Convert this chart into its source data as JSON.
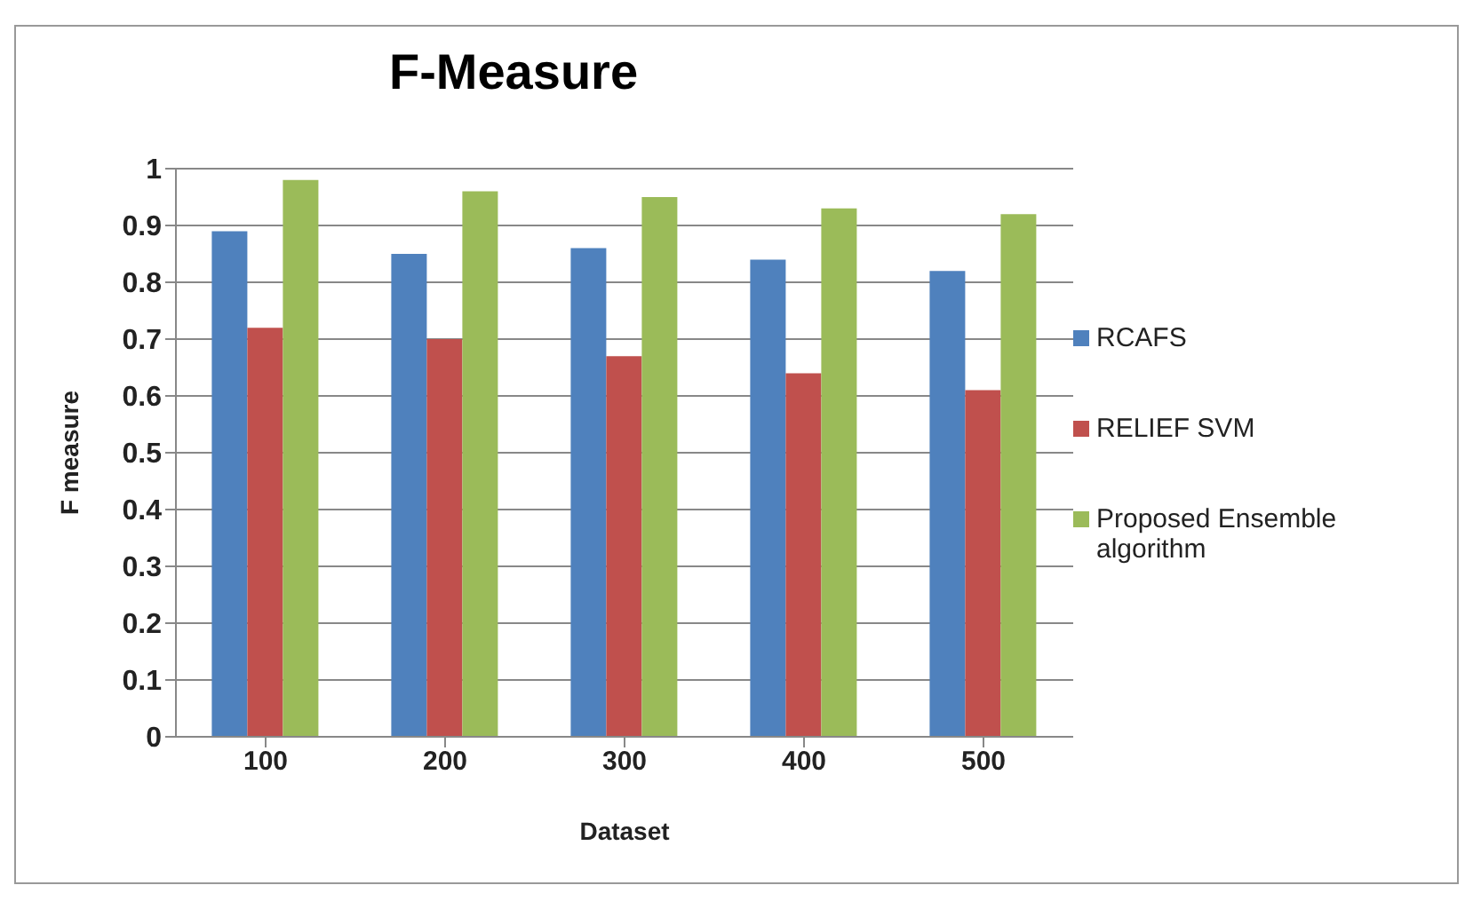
{
  "chart_data": {
    "type": "bar",
    "title": "F-Measure",
    "xlabel": "Dataset",
    "ylabel": "F measure",
    "categories": [
      "100",
      "200",
      "300",
      "400",
      "500"
    ],
    "series": [
      {
        "name": "RCAFS",
        "color": "#4f81bd",
        "values": [
          0.89,
          0.85,
          0.86,
          0.84,
          0.82
        ]
      },
      {
        "name": "RELIEF SVM",
        "color": "#c0504d",
        "values": [
          0.72,
          0.7,
          0.67,
          0.64,
          0.61
        ]
      },
      {
        "name": "Proposed Ensemble algorithm",
        "color": "#9bbb59",
        "values": [
          0.98,
          0.96,
          0.95,
          0.93,
          0.92
        ]
      }
    ],
    "ylim": [
      0,
      1
    ],
    "yticks": [
      0,
      0.1,
      0.2,
      0.3,
      0.4,
      0.5,
      0.6,
      0.7,
      0.8,
      0.9,
      1
    ],
    "grid": "y",
    "legend": "right"
  }
}
